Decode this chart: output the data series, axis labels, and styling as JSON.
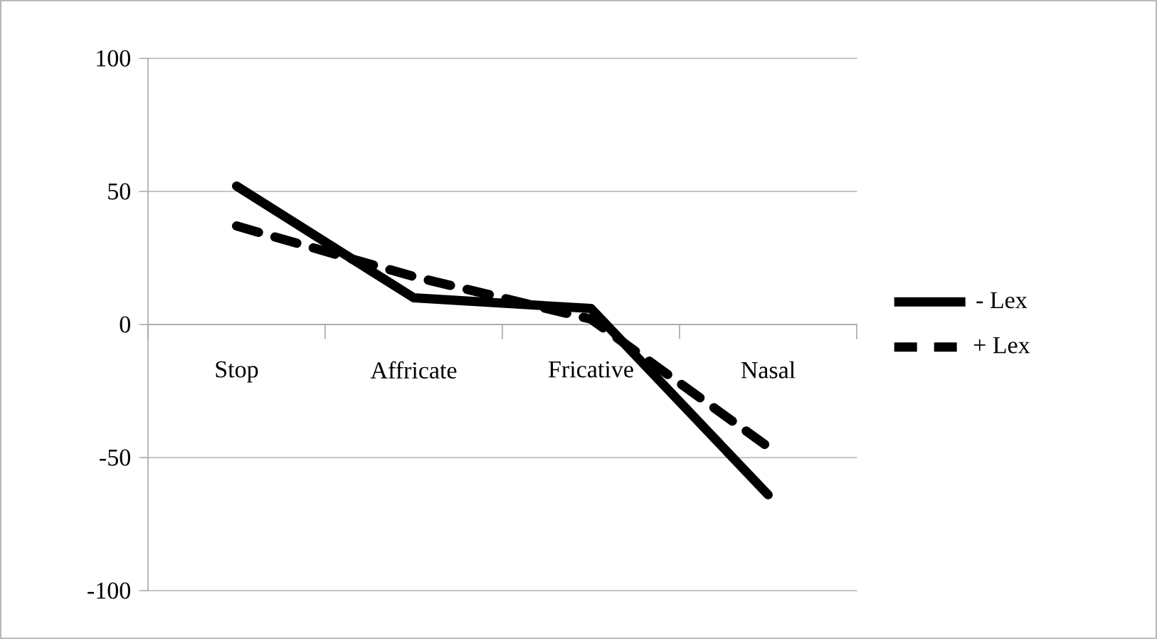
{
  "chart_data": {
    "type": "line",
    "categories": [
      "Stop",
      "Affricate",
      "Fricative",
      "Nasal"
    ],
    "series": [
      {
        "name": "- Lex",
        "color": "#000000",
        "values": [
          52,
          10,
          6,
          -64
        ],
        "line_style": "solid"
      },
      {
        "name": "+ Lex",
        "color": "#000000",
        "values": [
          37,
          18,
          2,
          -46
        ],
        "line_style": "dashed"
      }
    ],
    "ylim": [
      -100,
      100
    ],
    "yticks": [
      -100,
      -50,
      0,
      50,
      100
    ],
    "grid": "y",
    "legend": "right"
  }
}
